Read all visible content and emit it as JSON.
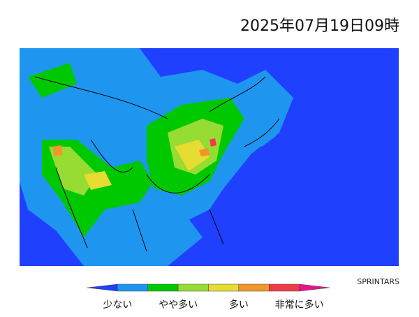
{
  "header": {
    "title": "2025年07月19日09時",
    "credit": "SPRINTARS"
  },
  "legend": {
    "colors": [
      "#2040ff",
      "#1e96f0",
      "#00c800",
      "#96dc32",
      "#e6dc32",
      "#f0962d",
      "#f03c46",
      "#e6148c"
    ],
    "labels": [
      "少ない",
      "やや多い",
      "多い",
      "非常に多い"
    ]
  }
}
